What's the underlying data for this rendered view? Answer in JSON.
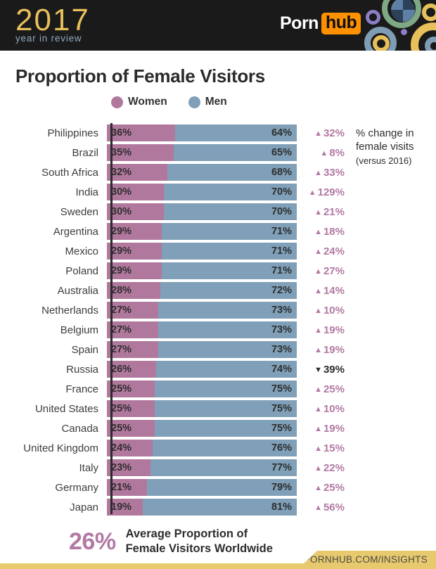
{
  "header": {
    "year": "2017",
    "year_subtitle": "year in review",
    "brand_part1": "Porn",
    "brand_part2": "hub"
  },
  "title": "Proportion of Female Visitors",
  "side_note": {
    "line1": "% change in",
    "line2": "female visits",
    "line3": "(versus 2016)"
  },
  "summary": {
    "value": "26%",
    "line1": "Average Proportion of",
    "line2": "Female Visitors Worldwide"
  },
  "footer": {
    "url": "PORNHUB.COM/INSIGHTS"
  },
  "colors": {
    "header_bg": "#1a1a1a",
    "gold": "#e8c05a",
    "footer_gold": "#e7ca6e",
    "subtitle_blue": "#8fa9c0",
    "pornhub_orange": "#ff9000",
    "women_pink": "#b1789d",
    "men_blue": "#7fa0b8",
    "change_up_pink": "#b279a2",
    "change_down_dark": "#2b2b2b"
  },
  "chart_data": {
    "type": "bar",
    "orientation": "horizontal",
    "stacked": true,
    "title": "Proportion of Female Visitors",
    "legend_position": "top",
    "x_range_pct": [
      0,
      100
    ],
    "categories": [
      "Philippines",
      "Brazil",
      "South Africa",
      "India",
      "Sweden",
      "Argentina",
      "Mexico",
      "Poland",
      "Australia",
      "Netherlands",
      "Belgium",
      "Spain",
      "Russia",
      "France",
      "United States",
      "Canada",
      "United Kingdom",
      "Italy",
      "Germany",
      "Japan"
    ],
    "series": [
      {
        "name": "Women",
        "color": "#b1789d",
        "values": [
          36,
          35,
          32,
          30,
          30,
          29,
          29,
          29,
          28,
          27,
          27,
          27,
          26,
          25,
          25,
          25,
          24,
          23,
          21,
          19
        ]
      },
      {
        "name": "Men",
        "color": "#7fa0b8",
        "values": [
          64,
          65,
          68,
          70,
          70,
          71,
          71,
          71,
          72,
          73,
          73,
          73,
          74,
          75,
          75,
          75,
          76,
          77,
          79,
          81
        ]
      }
    ],
    "change_vs_2016": [
      {
        "direction": "up",
        "value": "32%"
      },
      {
        "direction": "up",
        "value": "8%"
      },
      {
        "direction": "up",
        "value": "33%"
      },
      {
        "direction": "up",
        "value": "129%"
      },
      {
        "direction": "up",
        "value": "21%"
      },
      {
        "direction": "up",
        "value": "18%"
      },
      {
        "direction": "up",
        "value": "24%"
      },
      {
        "direction": "up",
        "value": "27%"
      },
      {
        "direction": "up",
        "value": "14%"
      },
      {
        "direction": "up",
        "value": "10%"
      },
      {
        "direction": "up",
        "value": "19%"
      },
      {
        "direction": "up",
        "value": "19%"
      },
      {
        "direction": "down",
        "value": "39%"
      },
      {
        "direction": "up",
        "value": "25%"
      },
      {
        "direction": "up",
        "value": "10%"
      },
      {
        "direction": "up",
        "value": "19%"
      },
      {
        "direction": "up",
        "value": "15%"
      },
      {
        "direction": "up",
        "value": "22%"
      },
      {
        "direction": "up",
        "value": "25%"
      },
      {
        "direction": "up",
        "value": "56%"
      }
    ],
    "annotation": "26% Average Proportion of Female Visitors Worldwide"
  }
}
